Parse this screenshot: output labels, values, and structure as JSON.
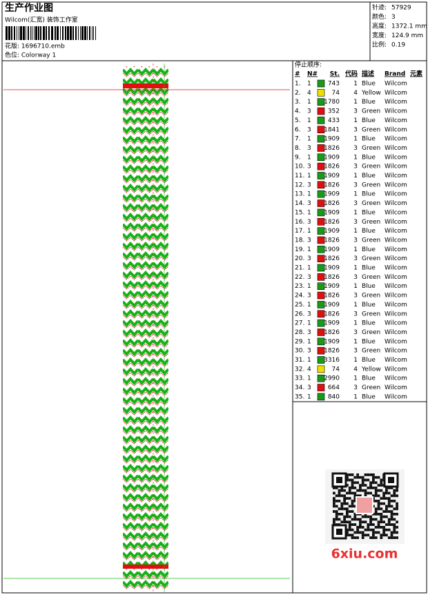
{
  "header": {
    "title": "生产作业图",
    "subtitle": "Wilcom(汇宽) 装饰工作室",
    "design_file": "花版: 1696710.emb",
    "colorway": "色位: Colorway 1"
  },
  "info": [
    {
      "label": "针迹:",
      "value": "57929"
    },
    {
      "label": "颜色:",
      "value": "3"
    },
    {
      "label": "高度:",
      "value": "1372.1 mm"
    },
    {
      "label": "宽度:",
      "value": "124.9 mm"
    },
    {
      "label": "比例:",
      "value": "0.19"
    }
  ],
  "table": {
    "heading": "停止顺序:",
    "columns": [
      "#",
      "N#",
      "St.",
      "代码",
      "描述",
      "Brand",
      "元素"
    ],
    "rows": [
      [
        "1.",
        "1",
        "#1a9a1a",
        743,
        "1",
        "Blue",
        "Wilcom"
      ],
      [
        "2.",
        "4",
        "#f0e000",
        74,
        "4",
        "Yellow",
        "Wilcom"
      ],
      [
        "3.",
        "1",
        "#1a9a1a",
        1780,
        "1",
        "Blue",
        "Wilcom"
      ],
      [
        "4.",
        "3",
        "#e01010",
        352,
        "3",
        "Green",
        "Wilcom"
      ],
      [
        "5.",
        "1",
        "#1a9a1a",
        433,
        "1",
        "Blue",
        "Wilcom"
      ],
      [
        "6.",
        "3",
        "#e01010",
        1841,
        "3",
        "Green",
        "Wilcom"
      ],
      [
        "7.",
        "1",
        "#1a9a1a",
        1909,
        "1",
        "Blue",
        "Wilcom"
      ],
      [
        "8.",
        "3",
        "#e01010",
        1826,
        "3",
        "Green",
        "Wilcom"
      ],
      [
        "9.",
        "1",
        "#1a9a1a",
        1909,
        "1",
        "Blue",
        "Wilcom"
      ],
      [
        "10.",
        "3",
        "#e01010",
        1826,
        "3",
        "Green",
        "Wilcom"
      ],
      [
        "11.",
        "1",
        "#1a9a1a",
        1909,
        "1",
        "Blue",
        "Wilcom"
      ],
      [
        "12.",
        "3",
        "#e01010",
        1826,
        "3",
        "Green",
        "Wilcom"
      ],
      [
        "13.",
        "1",
        "#1a9a1a",
        1909,
        "1",
        "Blue",
        "Wilcom"
      ],
      [
        "14.",
        "3",
        "#e01010",
        1826,
        "3",
        "Green",
        "Wilcom"
      ],
      [
        "15.",
        "1",
        "#1a9a1a",
        1909,
        "1",
        "Blue",
        "Wilcom"
      ],
      [
        "16.",
        "3",
        "#e01010",
        1826,
        "3",
        "Green",
        "Wilcom"
      ],
      [
        "17.",
        "1",
        "#1a9a1a",
        1909,
        "1",
        "Blue",
        "Wilcom"
      ],
      [
        "18.",
        "3",
        "#e01010",
        1826,
        "3",
        "Green",
        "Wilcom"
      ],
      [
        "19.",
        "1",
        "#1a9a1a",
        1909,
        "1",
        "Blue",
        "Wilcom"
      ],
      [
        "20.",
        "3",
        "#e01010",
        1826,
        "3",
        "Green",
        "Wilcom"
      ],
      [
        "21.",
        "1",
        "#1a9a1a",
        1909,
        "1",
        "Blue",
        "Wilcom"
      ],
      [
        "22.",
        "3",
        "#e01010",
        1826,
        "3",
        "Green",
        "Wilcom"
      ],
      [
        "23.",
        "1",
        "#1a9a1a",
        1909,
        "1",
        "Blue",
        "Wilcom"
      ],
      [
        "24.",
        "3",
        "#e01010",
        1826,
        "3",
        "Green",
        "Wilcom"
      ],
      [
        "25.",
        "1",
        "#1a9a1a",
        1909,
        "1",
        "Blue",
        "Wilcom"
      ],
      [
        "26.",
        "3",
        "#e01010",
        1826,
        "3",
        "Green",
        "Wilcom"
      ],
      [
        "27.",
        "1",
        "#1a9a1a",
        1909,
        "1",
        "Blue",
        "Wilcom"
      ],
      [
        "28.",
        "3",
        "#e01010",
        1826,
        "3",
        "Green",
        "Wilcom"
      ],
      [
        "29.",
        "1",
        "#1a9a1a",
        1909,
        "1",
        "Blue",
        "Wilcom"
      ],
      [
        "30.",
        "3",
        "#e01010",
        1826,
        "3",
        "Green",
        "Wilcom"
      ],
      [
        "31.",
        "1",
        "#1a9a1a",
        3316,
        "1",
        "Blue",
        "Wilcom"
      ],
      [
        "32.",
        "4",
        "#f0e000",
        74,
        "4",
        "Yellow",
        "Wilcom"
      ],
      [
        "33.",
        "1",
        "#1a9a1a",
        2990,
        "1",
        "Blue",
        "Wilcom"
      ],
      [
        "34.",
        "3",
        "#e01010",
        664,
        "3",
        "Green",
        "Wilcom"
      ],
      [
        "35.",
        "1",
        "#1a9a1a",
        840,
        "1",
        "Blue",
        "Wilcom"
      ]
    ]
  },
  "watermark": "6xiu.com"
}
